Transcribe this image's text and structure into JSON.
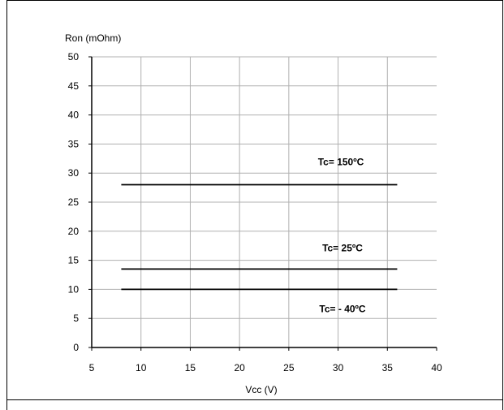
{
  "chart_data": {
    "type": "line",
    "title": "",
    "xlabel": "Vcc (V)",
    "ylabel": "Ron (mOhm)",
    "xlim": [
      5,
      40
    ],
    "ylim": [
      0,
      50
    ],
    "xticks": [
      5,
      10,
      15,
      20,
      25,
      30,
      35,
      40
    ],
    "yticks": [
      0,
      5,
      10,
      15,
      20,
      25,
      30,
      35,
      40,
      45,
      50
    ],
    "grid": true,
    "legend": "none",
    "series": [
      {
        "name": "Tc= 150ºC",
        "x": [
          8,
          36
        ],
        "y": [
          28,
          28
        ]
      },
      {
        "name": "Tc= 25ºC",
        "x": [
          8,
          36
        ],
        "y": [
          13.5,
          13.5
        ]
      },
      {
        "name": "Tc= - 40ºC",
        "x": [
          8,
          36
        ],
        "y": [
          10,
          10
        ]
      }
    ],
    "colors": {
      "line": "#000000",
      "grid": "#b0b0b0"
    }
  }
}
